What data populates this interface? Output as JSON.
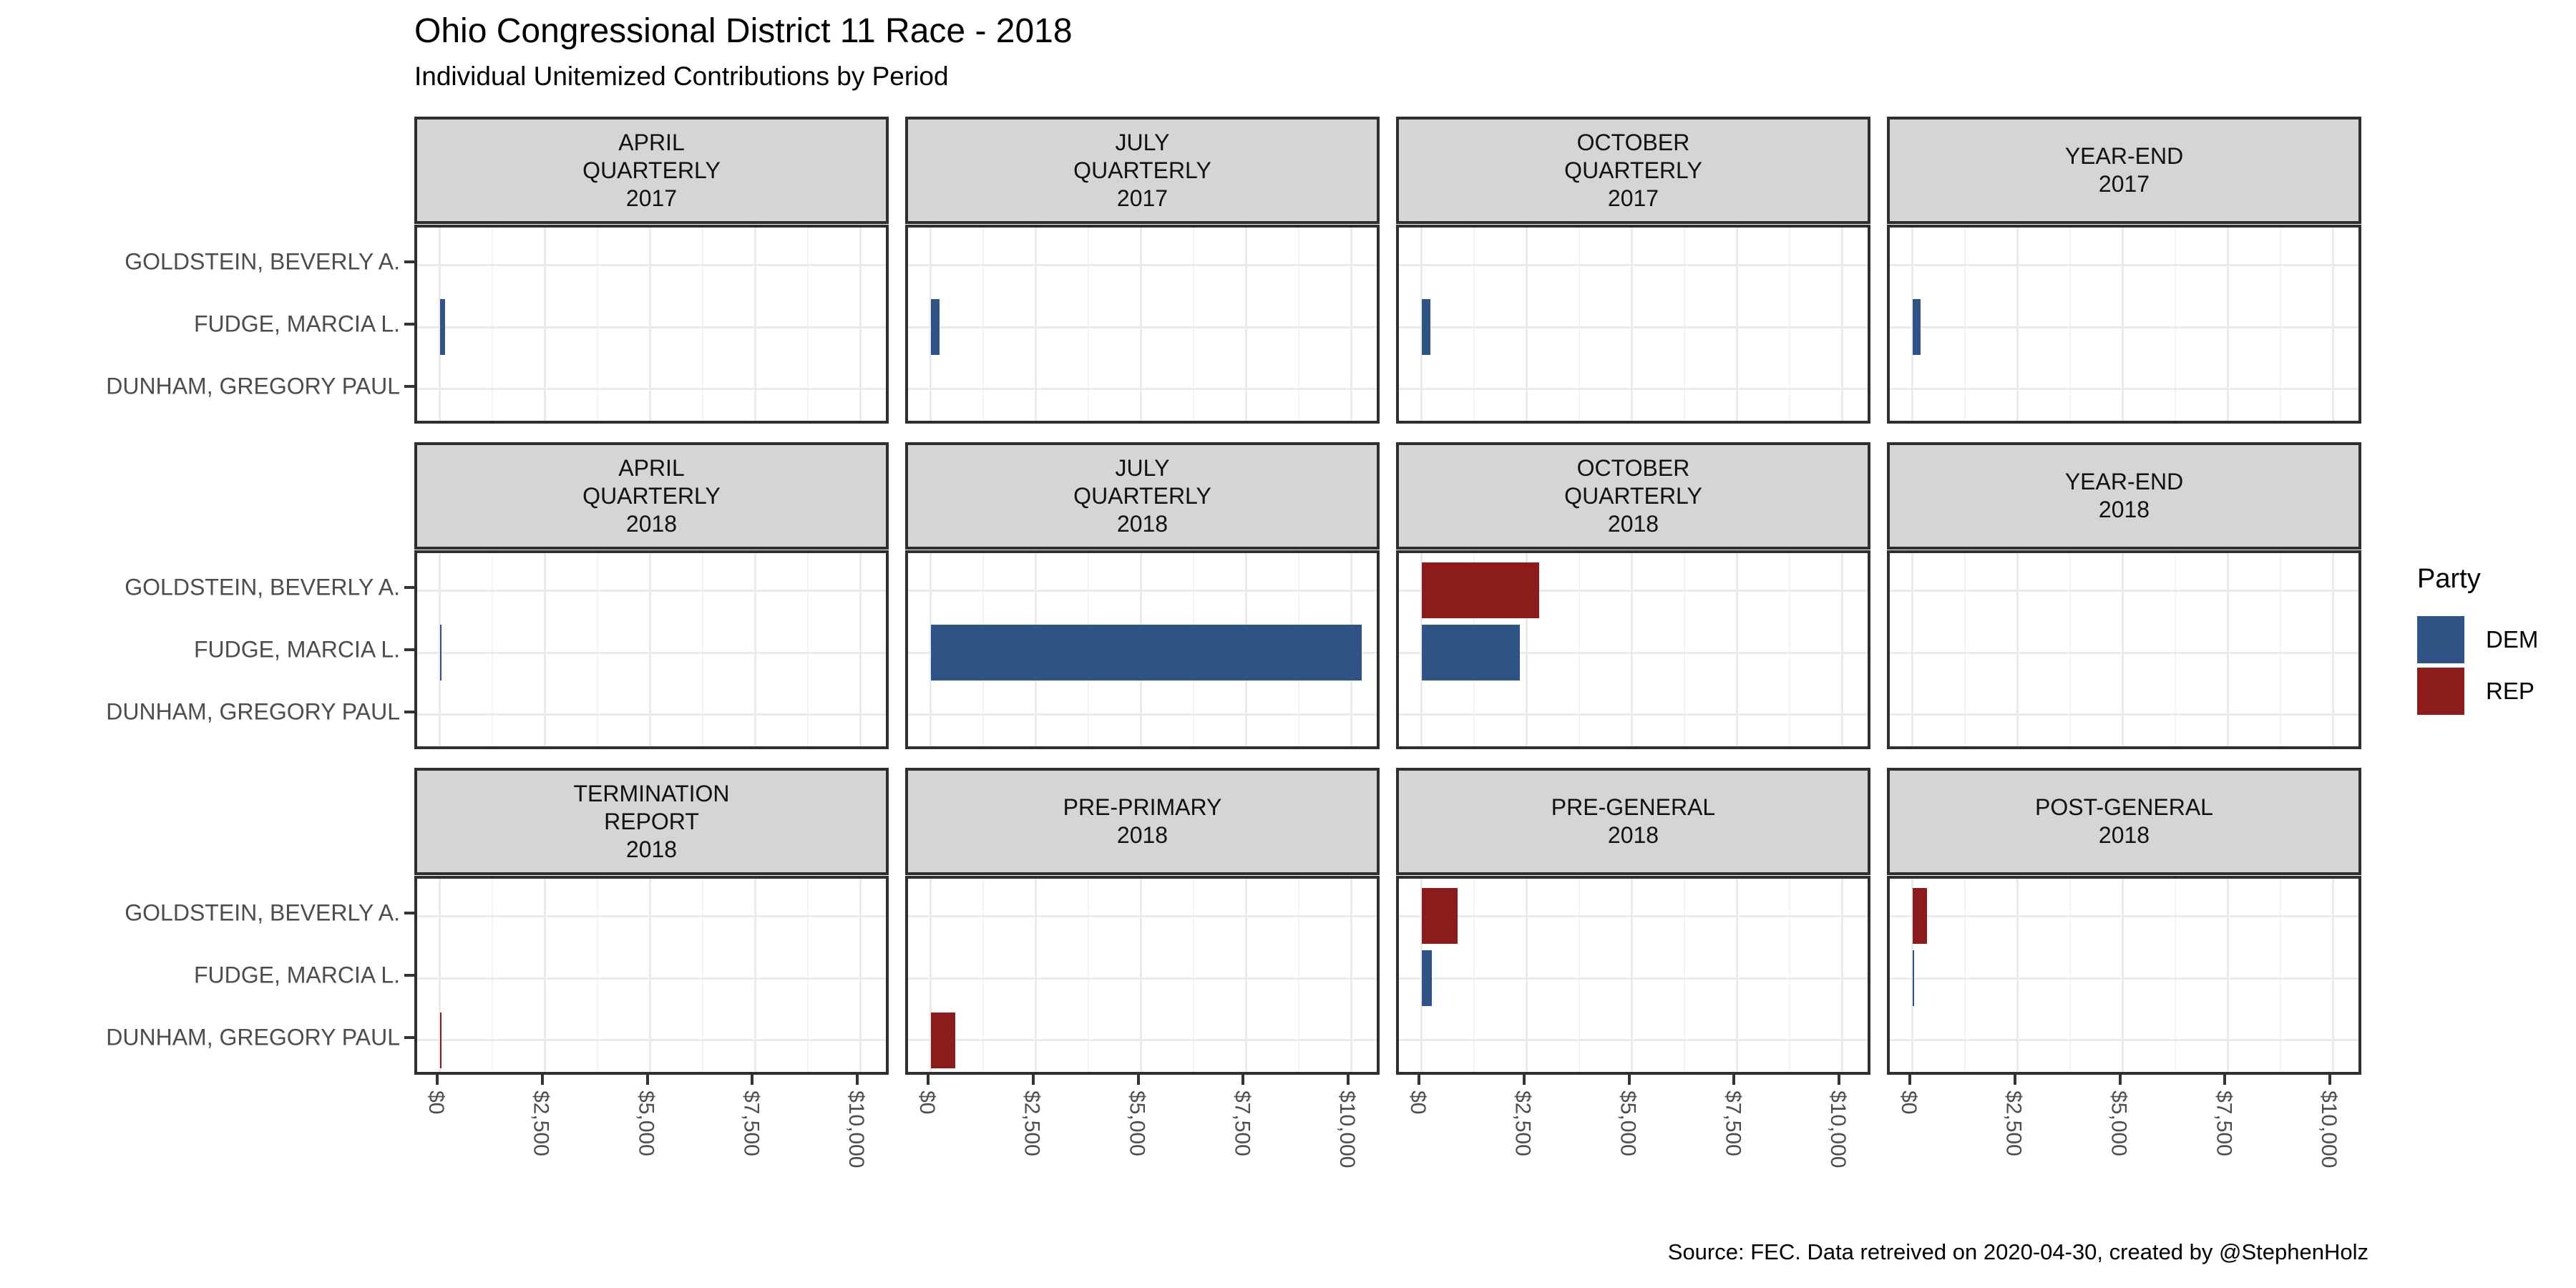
{
  "title": "Ohio Congressional District 11 Race - 2018",
  "subtitle": "Individual Unitemized Contributions by Period",
  "caption": "Source: FEC. Data retreived on 2020-04-30, created by @StephenHolz",
  "legend": {
    "title": "Party",
    "entries": [
      {
        "label": "DEM",
        "color": "#2E5384"
      },
      {
        "label": "REP",
        "color": "#8C1B1B"
      }
    ]
  },
  "colors": {
    "dem": "#2E5384",
    "rep": "#8C1B1B",
    "strip_bg": "#D5D5D5",
    "panel_border": "#2F2F2F",
    "grid_major": "#EBEBEB",
    "grid_minor": "#F4F4F4",
    "axis_text": "#4D4D4D"
  },
  "chart_data": {
    "type": "bar",
    "orientation": "horizontal",
    "grid": true,
    "legend_position": "right",
    "candidates": [
      "GOLDSTEIN, BEVERLY A.",
      "FUDGE, MARCIA L.",
      "DUNHAM, GREGORY PAUL"
    ],
    "xlim": [
      0,
      10750
    ],
    "x_ticks": [
      {
        "value": 0,
        "label": "$0"
      },
      {
        "value": 2500,
        "label": "$2,500"
      },
      {
        "value": 5000,
        "label": "$5,000"
      },
      {
        "value": 7500,
        "label": "$7,500"
      },
      {
        "value": 10000,
        "label": "$10,000"
      }
    ],
    "x_minor_ticks": [
      1250,
      3750,
      6250,
      8750
    ],
    "facets": [
      {
        "row": 0,
        "col": 0,
        "label_lines": [
          "APRIL",
          "QUARTERLY",
          "2017"
        ],
        "bars": [
          {
            "candidate": "FUDGE, MARCIA L.",
            "party": "DEM",
            "value": 120
          }
        ]
      },
      {
        "row": 0,
        "col": 1,
        "label_lines": [
          "JULY",
          "QUARTERLY",
          "2017"
        ],
        "bars": [
          {
            "candidate": "FUDGE, MARCIA L.",
            "party": "DEM",
            "value": 215
          }
        ]
      },
      {
        "row": 0,
        "col": 2,
        "label_lines": [
          "OCTOBER",
          "QUARTERLY",
          "2017"
        ],
        "bars": [
          {
            "candidate": "FUDGE, MARCIA L.",
            "party": "DEM",
            "value": 200
          }
        ]
      },
      {
        "row": 0,
        "col": 3,
        "label_lines": [
          "YEAR-END",
          "2017"
        ],
        "bars": [
          {
            "candidate": "FUDGE, MARCIA L.",
            "party": "DEM",
            "value": 190
          }
        ]
      },
      {
        "row": 1,
        "col": 0,
        "label_lines": [
          "APRIL",
          "QUARTERLY",
          "2018"
        ],
        "bars": [
          {
            "candidate": "FUDGE, MARCIA L.",
            "party": "DEM",
            "value": 35
          }
        ]
      },
      {
        "row": 1,
        "col": 1,
        "label_lines": [
          "JULY",
          "QUARTERLY",
          "2018"
        ],
        "bars": [
          {
            "candidate": "FUDGE, MARCIA L.",
            "party": "DEM",
            "value": 10250
          }
        ]
      },
      {
        "row": 1,
        "col": 2,
        "label_lines": [
          "OCTOBER",
          "QUARTERLY",
          "2018"
        ],
        "bars": [
          {
            "candidate": "GOLDSTEIN, BEVERLY A.",
            "party": "REP",
            "value": 2800
          },
          {
            "candidate": "FUDGE, MARCIA L.",
            "party": "DEM",
            "value": 2330
          }
        ]
      },
      {
        "row": 1,
        "col": 3,
        "label_lines": [
          "YEAR-END",
          "2018"
        ],
        "bars": []
      },
      {
        "row": 2,
        "col": 0,
        "label_lines": [
          "TERMINATION",
          "REPORT",
          "2018"
        ],
        "bars": [
          {
            "candidate": "DUNHAM, GREGORY PAUL",
            "party": "REP",
            "value": 25
          }
        ]
      },
      {
        "row": 2,
        "col": 1,
        "label_lines": [
          "PRE-PRIMARY",
          "2018"
        ],
        "bars": [
          {
            "candidate": "DUNHAM, GREGORY PAUL",
            "party": "REP",
            "value": 590
          }
        ]
      },
      {
        "row": 2,
        "col": 2,
        "label_lines": [
          "PRE-GENERAL",
          "2018"
        ],
        "bars": [
          {
            "candidate": "GOLDSTEIN, BEVERLY A.",
            "party": "REP",
            "value": 850
          },
          {
            "candidate": "FUDGE, MARCIA L.",
            "party": "DEM",
            "value": 240
          }
        ]
      },
      {
        "row": 2,
        "col": 3,
        "label_lines": [
          "POST-GENERAL",
          "2018"
        ],
        "bars": [
          {
            "candidate": "GOLDSTEIN, BEVERLY A.",
            "party": "REP",
            "value": 340
          },
          {
            "candidate": "FUDGE, MARCIA L.",
            "party": "DEM",
            "value": 25
          }
        ]
      }
    ]
  }
}
